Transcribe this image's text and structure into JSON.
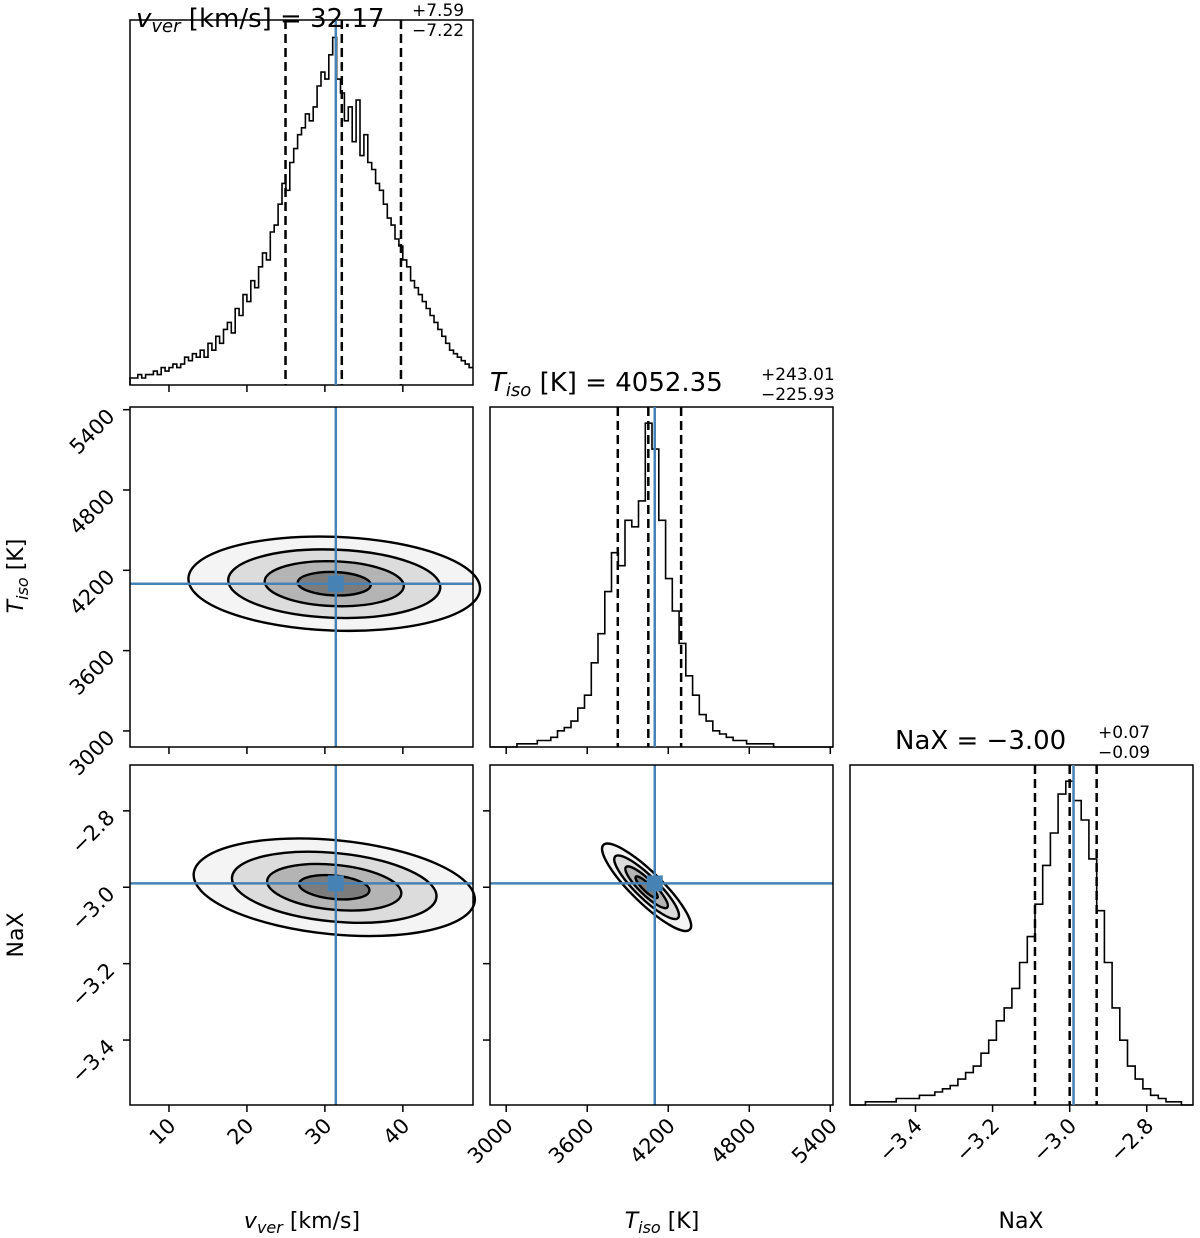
{
  "chart_data": {
    "type": "corner",
    "colors": {
      "truth": "#4682b4",
      "line": "#000000",
      "background": "#ffffff",
      "fill_max": "#606060"
    },
    "parameters": [
      {
        "key": "vver",
        "label_sym": "v",
        "label_sub": "ver",
        "label_unit": "[km/s]",
        "median": 32.17,
        "plus": "+7.59",
        "minus": "−7.22",
        "median_text": "32.17",
        "quantiles": [
          24.95,
          32.17,
          39.76
        ],
        "truth": 31.4,
        "range": [
          5,
          49
        ],
        "ticks": [
          10,
          20,
          30,
          40
        ],
        "tick_labels": [
          "10",
          "20",
          "30",
          "40"
        ]
      },
      {
        "key": "tiso",
        "label_sym": "T",
        "label_sub": "iso",
        "label_unit": "[K]",
        "median": 4052.35,
        "plus": "+243.01",
        "minus": "−225.93",
        "median_text": "4052.35",
        "quantiles": [
          3826.42,
          4052.35,
          4295.36
        ],
        "truth": 4100,
        "range": [
          2880,
          5420
        ],
        "ticks": [
          3000,
          3600,
          4200,
          4800,
          5400
        ],
        "tick_labels": [
          "3000",
          "3600",
          "4200",
          "4800",
          "5400"
        ]
      },
      {
        "key": "nax",
        "label_sym": "NaX",
        "label_sub": "",
        "label_unit": "",
        "median": -3.0,
        "plus": "+0.07",
        "minus": "−0.09",
        "median_text": "−3.00",
        "quantiles": [
          -3.09,
          -3.0,
          -2.93
        ],
        "truth": -2.99,
        "range": [
          -3.57,
          -2.68
        ],
        "ticks": [
          -3.4,
          -3.2,
          -3.0,
          -2.8
        ],
        "tick_labels": [
          "−3.4",
          "−3.2",
          "−3.0",
          "−2.8"
        ]
      }
    ],
    "hist": [
      {
        "param": "vver",
        "bins": [
          5,
          5.5,
          6,
          6.5,
          7,
          7.5,
          8,
          8.5,
          9,
          9.5,
          10,
          10.5,
          11,
          11.5,
          12,
          12.5,
          13,
          13.5,
          14,
          14.5,
          15,
          15.5,
          16,
          16.5,
          17,
          17.5,
          18,
          18.5,
          19,
          19.5,
          20,
          20.5,
          21,
          21.5,
          22,
          22.5,
          23,
          23.5,
          24,
          24.5,
          25,
          25.5,
          26,
          26.5,
          27,
          27.5,
          28,
          28.5,
          29,
          29.5,
          30,
          30.5,
          31,
          31.5,
          32,
          32.5,
          33,
          33.5,
          34,
          34.5,
          35,
          35.5,
          36,
          36.5,
          37,
          37.5,
          38,
          38.5,
          39,
          39.5,
          40,
          40.5,
          41,
          41.5,
          42,
          42.5,
          43,
          43.5,
          44,
          44.5,
          45,
          45.5,
          46,
          46.5,
          47,
          47.5,
          48,
          48.5,
          49
        ],
        "counts": [
          2,
          2,
          3,
          2,
          3,
          3,
          4,
          3,
          5,
          4,
          5,
          6,
          5,
          6,
          8,
          7,
          9,
          8,
          10,
          8,
          12,
          10,
          14,
          12,
          16,
          18,
          15,
          22,
          20,
          26,
          24,
          30,
          28,
          34,
          38,
          36,
          44,
          46,
          52,
          58,
          56,
          64,
          68,
          72,
          74,
          78,
          76,
          80,
          86,
          90,
          88,
          95,
          100,
          88,
          84,
          76,
          80,
          70,
          82,
          66,
          72,
          64,
          62,
          58,
          56,
          52,
          48,
          46,
          42,
          40,
          36,
          34,
          30,
          28,
          26,
          24,
          22,
          20,
          18,
          16,
          14,
          12,
          10,
          9,
          8,
          7,
          6,
          5
        ]
      },
      {
        "param": "tiso",
        "bins": [
          2880,
          2930,
          2980,
          3030,
          3080,
          3130,
          3180,
          3230,
          3280,
          3330,
          3380,
          3430,
          3480,
          3530,
          3580,
          3630,
          3680,
          3730,
          3780,
          3830,
          3880,
          3930,
          3980,
          4030,
          4080,
          4130,
          4180,
          4230,
          4280,
          4330,
          4380,
          4430,
          4480,
          4530,
          4580,
          4630,
          4680,
          4730,
          4780,
          4830,
          4880,
          4930,
          4980,
          5030,
          5080,
          5130,
          5180,
          5230,
          5280,
          5330,
          5380,
          5420
        ],
        "counts": [
          0,
          0,
          0,
          0,
          1,
          1,
          1,
          2,
          2,
          3,
          5,
          6,
          8,
          12,
          16,
          26,
          35,
          48,
          60,
          56,
          70,
          68,
          76,
          100,
          92,
          70,
          52,
          42,
          32,
          22,
          16,
          10,
          8,
          5,
          4,
          3,
          2,
          2,
          1,
          1,
          1,
          1,
          0,
          0,
          0,
          0,
          0,
          0,
          0,
          0,
          0
        ]
      },
      {
        "param": "nax",
        "bins": [
          -3.57,
          -3.55,
          -3.53,
          -3.51,
          -3.49,
          -3.47,
          -3.45,
          -3.43,
          -3.41,
          -3.39,
          -3.37,
          -3.35,
          -3.33,
          -3.31,
          -3.29,
          -3.27,
          -3.25,
          -3.23,
          -3.21,
          -3.19,
          -3.17,
          -3.15,
          -3.13,
          -3.11,
          -3.09,
          -3.07,
          -3.05,
          -3.03,
          -3.01,
          -2.99,
          -2.97,
          -2.95,
          -2.93,
          -2.91,
          -2.89,
          -2.87,
          -2.85,
          -2.83,
          -2.81,
          -2.79,
          -2.77,
          -2.75,
          -2.73,
          -2.71,
          -2.69,
          -2.68
        ],
        "counts": [
          0,
          0,
          1,
          1,
          1,
          1,
          2,
          2,
          2,
          3,
          3,
          4,
          5,
          6,
          8,
          10,
          12,
          16,
          20,
          26,
          30,
          36,
          44,
          52,
          62,
          74,
          84,
          96,
          100,
          94,
          88,
          76,
          60,
          44,
          30,
          20,
          12,
          8,
          5,
          3,
          2,
          1,
          1,
          0,
          0
        ]
      }
    ],
    "pairs": [
      {
        "x": "vver",
        "y": "tiso",
        "center": [
          31.2,
          4100
        ],
        "sigma": [
          8.5,
          160
        ],
        "rho": -0.1
      },
      {
        "x": "vver",
        "y": "nax",
        "center": [
          31.2,
          -3.0
        ],
        "sigma": [
          8.2,
          0.058
        ],
        "rho": -0.25
      },
      {
        "x": "tiso",
        "y": "nax",
        "center": [
          4040,
          -3.0
        ],
        "sigma": [
          150,
          0.052
        ],
        "rho": -0.88
      }
    ]
  }
}
